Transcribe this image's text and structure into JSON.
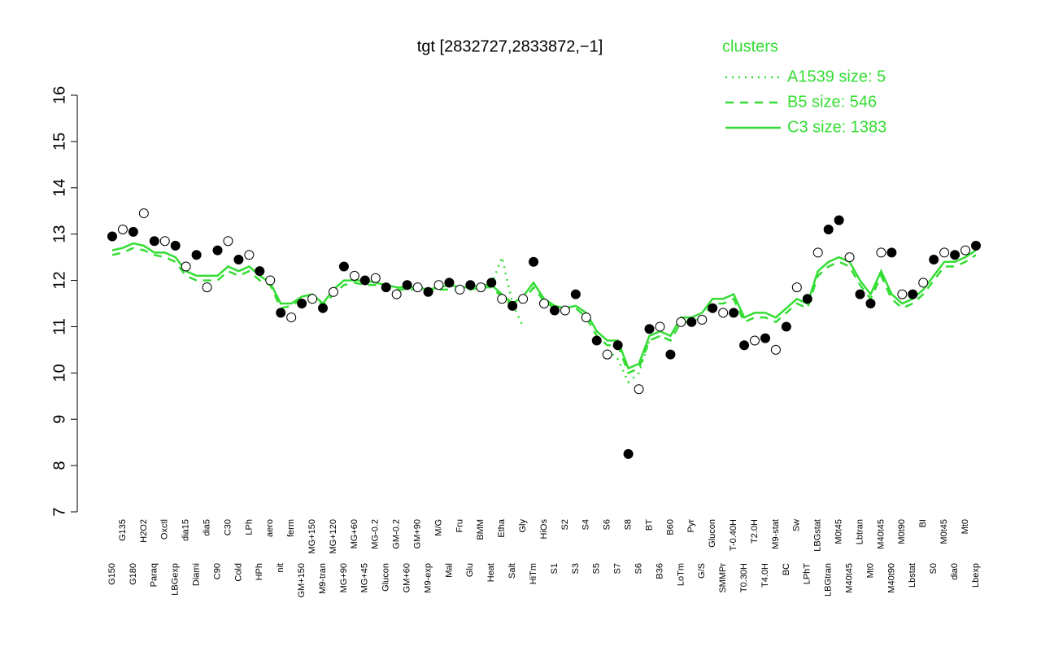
{
  "chart_data": {
    "type": "line",
    "title": "tgt [2832727,2833872,−1]",
    "legend_title": "clusters",
    "legend_position": "top-right",
    "ylim": [
      7,
      16
    ],
    "yticks": [
      7,
      8,
      9,
      10,
      11,
      12,
      13,
      14,
      15,
      16
    ],
    "categories": [
      "G150",
      "G135",
      "G180",
      "H2O2",
      "Paraq",
      "Oxctl",
      "LBGexp",
      "dia15",
      "Diami",
      "dia5",
      "C90",
      "C30",
      "Cold",
      "LPh",
      "HPh",
      "aero",
      "nit",
      "ferm",
      "GM+150",
      "MG+150",
      "M9-tran",
      "MG+120",
      "MG+90",
      "MG+60",
      "MG+45",
      "MG-0.2",
      "Glucon",
      "GM-0.2",
      "GM+60",
      "GM+90",
      "M9-exp",
      "M/G",
      "Mal",
      "Fru",
      "Glu",
      "BMM",
      "Heat",
      "Etha",
      "Salt",
      "Gly",
      "HiTm",
      "HiOs",
      "S1",
      "S2",
      "S3",
      "S4",
      "S5",
      "S6",
      "S7",
      "S8",
      "S6",
      "BT",
      "B36",
      "B60",
      "LoTm",
      "Pyr",
      "G/S",
      "Glucon",
      "SMMPr",
      "T-0.40H",
      "T0.30H",
      "T2.0H",
      "T4.0H",
      "M9-stat",
      "BC",
      "Sw",
      "LPhT",
      "LBGstat",
      "LBGtran",
      "M0t45",
      "M40t45",
      "Lbtran",
      "Mt0",
      "M40t45",
      "M40t90",
      "M0t90",
      "Lbstat",
      "BI",
      "S0",
      "M0t45",
      "dia0",
      "Mt0",
      "Lbexp"
    ],
    "values": [
      12.95,
      13.1,
      13.05,
      13.45,
      12.85,
      12.85,
      12.75,
      12.3,
      12.55,
      11.85,
      12.65,
      12.85,
      12.45,
      12.55,
      12.2,
      12.0,
      11.3,
      11.2,
      11.5,
      11.6,
      11.4,
      11.75,
      12.3,
      12.1,
      12.0,
      12.05,
      11.85,
      11.7,
      11.9,
      11.85,
      11.75,
      11.9,
      11.95,
      11.8,
      11.9,
      11.85,
      11.95,
      11.6,
      11.45,
      11.6,
      12.4,
      11.5,
      11.35,
      11.35,
      11.7,
      11.2,
      10.7,
      10.4,
      10.6,
      8.25,
      9.65,
      10.95,
      11.0,
      10.4,
      11.1,
      11.1,
      11.15,
      11.4,
      11.3,
      11.3,
      10.6,
      10.7,
      10.75,
      10.5,
      11.0,
      11.85,
      11.6,
      12.6,
      13.1,
      13.3,
      12.5,
      11.7,
      11.5,
      12.6,
      12.6,
      11.7,
      11.7,
      11.95,
      12.45,
      12.6,
      12.55,
      12.65,
      12.75
    ],
    "marker_colors": [
      "black",
      "white",
      "black",
      "white",
      "black",
      "white",
      "black",
      "white",
      "black",
      "white",
      "black",
      "white",
      "black",
      "white",
      "black",
      "white",
      "black",
      "white",
      "black",
      "white",
      "black",
      "white",
      "black",
      "white",
      "black",
      "white",
      "black",
      "white",
      "black",
      "white",
      "black",
      "white",
      "black",
      "white",
      "black",
      "white",
      "black",
      "white",
      "black",
      "white",
      "black",
      "white",
      "black",
      "white",
      "black",
      "white",
      "black",
      "white",
      "black",
      "black",
      "white",
      "black",
      "white",
      "black",
      "white",
      "black",
      "white",
      "black",
      "white",
      "black",
      "black",
      "white",
      "black",
      "white",
      "black",
      "white",
      "black",
      "white",
      "black",
      "black",
      "white",
      "black",
      "black",
      "white",
      "black",
      "white",
      "black",
      "white",
      "black",
      "white",
      "black",
      "white",
      "black"
    ],
    "series": [
      {
        "name": "A1539 size: 5",
        "color": "#33dd33",
        "dash": "dotted",
        "values": [
          null,
          null,
          null,
          null,
          null,
          null,
          null,
          null,
          null,
          null,
          null,
          null,
          null,
          null,
          null,
          null,
          null,
          null,
          null,
          null,
          null,
          null,
          null,
          null,
          null,
          null,
          null,
          null,
          null,
          null,
          null,
          null,
          null,
          null,
          null,
          null,
          11.9,
          12.5,
          11.5,
          11.0,
          null,
          null,
          null,
          null,
          null,
          null,
          null,
          10.5,
          10.3,
          9.8,
          10.0,
          10.7,
          10.8,
          null,
          null,
          null,
          null,
          null,
          null,
          null,
          null,
          null,
          null,
          null,
          null,
          null,
          null,
          null,
          null,
          null,
          null,
          null,
          null,
          null,
          null,
          null,
          null,
          null,
          null,
          null,
          null,
          null,
          null
        ]
      },
      {
        "name": "B5 size: 546",
        "color": "#33dd33",
        "dash": "dashed",
        "values": [
          12.55,
          12.6,
          12.7,
          12.65,
          12.55,
          12.5,
          12.4,
          12.1,
          12.0,
          12.0,
          12.0,
          12.2,
          12.1,
          12.2,
          12.0,
          11.9,
          11.4,
          11.45,
          11.6,
          11.65,
          11.45,
          11.7,
          11.9,
          11.95,
          11.9,
          11.9,
          11.8,
          11.8,
          11.8,
          11.8,
          11.75,
          11.8,
          11.8,
          11.8,
          11.8,
          11.85,
          11.85,
          11.65,
          11.45,
          11.55,
          11.85,
          11.55,
          11.4,
          11.35,
          11.4,
          11.2,
          10.8,
          10.6,
          10.6,
          10.0,
          10.1,
          10.7,
          10.8,
          10.7,
          11.1,
          11.1,
          11.2,
          11.5,
          11.5,
          11.6,
          11.1,
          11.2,
          11.2,
          11.1,
          11.3,
          11.5,
          11.4,
          12.1,
          12.3,
          12.4,
          12.3,
          11.9,
          11.6,
          12.1,
          11.6,
          11.4,
          11.5,
          11.7,
          12.0,
          12.3,
          12.3,
          12.4,
          12.55
        ]
      },
      {
        "name": "C3 size: 1383",
        "color": "#33dd33",
        "dash": "solid",
        "values": [
          12.65,
          12.7,
          12.8,
          12.75,
          12.6,
          12.6,
          12.5,
          12.2,
          12.1,
          12.1,
          12.1,
          12.3,
          12.2,
          12.3,
          12.1,
          11.95,
          11.5,
          11.5,
          11.65,
          11.7,
          11.5,
          11.8,
          12.0,
          12.0,
          12.0,
          11.95,
          11.9,
          11.85,
          11.85,
          11.85,
          11.8,
          11.85,
          11.9,
          11.85,
          11.85,
          11.9,
          11.9,
          11.7,
          11.5,
          11.65,
          11.95,
          11.6,
          11.45,
          11.4,
          11.45,
          11.3,
          10.9,
          10.7,
          10.7,
          10.1,
          10.2,
          10.8,
          10.9,
          10.8,
          11.2,
          11.2,
          11.3,
          11.6,
          11.6,
          11.7,
          11.2,
          11.3,
          11.3,
          11.2,
          11.4,
          11.6,
          11.5,
          12.2,
          12.4,
          12.5,
          12.4,
          12.0,
          11.7,
          12.2,
          11.7,
          11.5,
          11.6,
          11.8,
          12.1,
          12.4,
          12.4,
          12.5,
          12.65
        ]
      }
    ]
  }
}
